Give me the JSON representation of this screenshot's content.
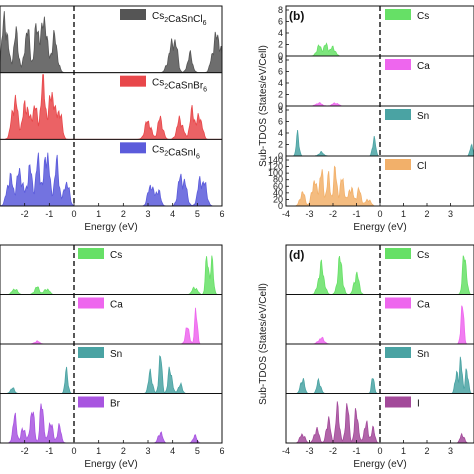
{
  "chart_data": [
    {
      "panel": "a",
      "type": "area",
      "xlabel": "Energy (eV)",
      "ylabel": "",
      "xlim": [
        -3,
        6
      ],
      "x_ticks": [
        "-2",
        "-1",
        "0",
        "1",
        "2",
        "3",
        "4",
        "5",
        "6"
      ],
      "fermi_level": 0,
      "subpanels": [
        {
          "name": "Cs2CaSnCl6",
          "legend_main": "Cs",
          "legend_parts": [
            {
              "t": "Cs"
            },
            {
              "t": "2",
              "sub": true
            },
            {
              "t": "CaSnCl"
            },
            {
              "t": "6",
              "sub": true
            }
          ],
          "color": "#555555",
          "peaks": [
            [
              -2.8,
              0.85,
              0.12
            ],
            [
              -2.35,
              0.6,
              0.1
            ],
            [
              -1.9,
              0.7,
              0.1
            ],
            [
              -1.5,
              0.75,
              0.1
            ],
            [
              -1.2,
              0.9,
              0.1
            ],
            [
              -0.8,
              0.55,
              0.12
            ],
            [
              3.9,
              0.3,
              0.12
            ],
            [
              4.1,
              0.45,
              0.1
            ],
            [
              4.7,
              0.28,
              0.1
            ],
            [
              5.7,
              0.45,
              0.12
            ],
            [
              5.9,
              0.4,
              0.1
            ]
          ]
        },
        {
          "name": "Cs2CaSnBr6",
          "legend_main": "Cs",
          "legend_parts": [
            {
              "t": "Cs"
            },
            {
              "t": "2",
              "sub": true
            },
            {
              "t": "CaSnBr"
            },
            {
              "t": "6",
              "sub": true
            }
          ],
          "color": "#e8474a",
          "peaks": [
            [
              -2.4,
              0.6,
              0.12
            ],
            [
              -1.95,
              0.55,
              0.12
            ],
            [
              -1.6,
              0.5,
              0.1
            ],
            [
              -1.25,
              0.85,
              0.1
            ],
            [
              -0.9,
              0.75,
              0.1
            ],
            [
              -0.6,
              0.45,
              0.1
            ],
            [
              3.0,
              0.28,
              0.12
            ],
            [
              3.5,
              0.32,
              0.1
            ],
            [
              4.3,
              0.3,
              0.12
            ],
            [
              4.8,
              0.42,
              0.1
            ],
            [
              5.1,
              0.35,
              0.1
            ]
          ]
        },
        {
          "name": "Cs2CaSnI6",
          "legend_main": "Cs",
          "legend_parts": [
            {
              "t": "Cs"
            },
            {
              "t": "2",
              "sub": true
            },
            {
              "t": "CaSnI"
            },
            {
              "t": "6",
              "sub": true
            }
          ],
          "color": "#5b5bdb",
          "peaks": [
            [
              -2.6,
              0.45,
              0.12
            ],
            [
              -2.2,
              0.55,
              0.12
            ],
            [
              -1.8,
              0.6,
              0.1
            ],
            [
              -1.45,
              0.7,
              0.1
            ],
            [
              -1.1,
              0.9,
              0.1
            ],
            [
              -0.7,
              0.65,
              0.1
            ],
            [
              -0.3,
              0.4,
              0.1
            ],
            [
              3.1,
              0.35,
              0.1
            ],
            [
              3.4,
              0.25,
              0.1
            ],
            [
              4.3,
              0.4,
              0.1
            ],
            [
              4.5,
              0.3,
              0.1
            ],
            [
              5.1,
              0.35,
              0.1
            ],
            [
              5.3,
              0.3,
              0.1
            ]
          ]
        }
      ]
    },
    {
      "panel": "b",
      "label": "(b)",
      "type": "area",
      "xlabel": "Energy (eV)",
      "ylabel": "Sub-TDOS (States/eV/Cell)",
      "xlim": [
        -4,
        4
      ],
      "x_ticks": [
        "-4",
        "-3",
        "-2",
        "-1",
        "0",
        "1",
        "2",
        "3"
      ],
      "fermi_level": 0,
      "subpanels": [
        {
          "name": "Cs",
          "color": "#66e066",
          "ylim": [
            0,
            8
          ],
          "yticks": [
            "0",
            "2",
            "4",
            "6",
            "8"
          ],
          "peaks": [
            [
              -2.6,
              1.6,
              0.1
            ],
            [
              -2.3,
              1.8,
              0.1
            ],
            [
              -2.0,
              1.4,
              0.1
            ]
          ]
        },
        {
          "name": "Ca",
          "color": "#ee66ee",
          "ylim": [
            0,
            8
          ],
          "yticks": [
            "0",
            "2",
            "4",
            "6",
            "8"
          ],
          "peaks": [
            [
              -2.6,
              0.5,
              0.12
            ],
            [
              -1.9,
              0.5,
              0.12
            ]
          ]
        },
        {
          "name": "Sn",
          "color": "#4aa3a3",
          "ylim": [
            0,
            8
          ],
          "yticks": [
            "0",
            "2",
            "4",
            "6",
            "8"
          ],
          "peaks": [
            [
              -3.5,
              3.5,
              0.06
            ],
            [
              -2.5,
              0.6,
              0.1
            ],
            [
              -0.25,
              3.4,
              0.06
            ],
            [
              3.9,
              2.0,
              0.06
            ]
          ]
        },
        {
          "name": "Cl",
          "color": "#f2b06a",
          "ylim": [
            0,
            140
          ],
          "yticks": [
            "0",
            "20",
            "40",
            "60",
            "80",
            "100",
            "120",
            "140"
          ],
          "peaks": [
            [
              -3.3,
              40,
              0.1
            ],
            [
              -2.8,
              75,
              0.1
            ],
            [
              -2.5,
              100,
              0.08
            ],
            [
              -2.2,
              80,
              0.08
            ],
            [
              -1.9,
              100,
              0.08
            ],
            [
              -1.6,
              85,
              0.08
            ],
            [
              -1.25,
              55,
              0.1
            ],
            [
              -0.9,
              45,
              0.1
            ],
            [
              -0.5,
              20,
              0.1
            ]
          ]
        }
      ]
    },
    {
      "panel": "c",
      "type": "area",
      "xlabel": "Energy (eV)",
      "ylabel": "",
      "xlim": [
        -3,
        6
      ],
      "x_ticks": [
        "-2",
        "-1",
        "0",
        "1",
        "2",
        "3",
        "4",
        "5",
        "6"
      ],
      "fermi_level": 0,
      "subpanels": [
        {
          "name": "Cs",
          "color": "#66e066",
          "peaks": [
            [
              -2.4,
              0.12,
              0.1
            ],
            [
              -1.5,
              0.15,
              0.1
            ],
            [
              -1.1,
              0.12,
              0.1
            ],
            [
              4.9,
              0.15,
              0.1
            ],
            [
              5.4,
              0.85,
              0.06
            ],
            [
              5.6,
              0.65,
              0.06
            ]
          ]
        },
        {
          "name": "Ca",
          "color": "#ee66ee",
          "peaks": [
            [
              -1.5,
              0.05,
              0.1
            ],
            [
              4.6,
              0.3,
              0.08
            ],
            [
              4.95,
              0.75,
              0.05
            ]
          ]
        },
        {
          "name": "Sn",
          "color": "#4aa3a3",
          "peaks": [
            [
              -2.5,
              0.12,
              0.08
            ],
            [
              -0.3,
              0.5,
              0.06
            ],
            [
              3.1,
              0.45,
              0.08
            ],
            [
              3.5,
              0.9,
              0.06
            ],
            [
              3.9,
              0.55,
              0.08
            ],
            [
              4.3,
              0.2,
              0.08
            ]
          ]
        },
        {
          "name": "Br",
          "color": "#a855e0",
          "peaks": [
            [
              -2.4,
              0.55,
              0.08
            ],
            [
              -2.05,
              0.35,
              0.08
            ],
            [
              -1.7,
              0.75,
              0.08
            ],
            [
              -1.3,
              0.9,
              0.07
            ],
            [
              -0.95,
              0.5,
              0.08
            ],
            [
              -0.6,
              0.35,
              0.08
            ],
            [
              3.5,
              0.25,
              0.08
            ],
            [
              4.9,
              0.15,
              0.08
            ]
          ]
        }
      ]
    },
    {
      "panel": "d",
      "label": "(d)",
      "type": "area",
      "xlabel": "Energy (eV)",
      "ylabel": "Sub-TDOS (States/eV/Cell)",
      "xlim": [
        -4,
        4
      ],
      "x_ticks": [
        "-4",
        "-3",
        "-2",
        "-1",
        "0",
        "1",
        "2",
        "3"
      ],
      "fermi_level": 0,
      "subpanels": [
        {
          "name": "Cs",
          "color": "#66e066",
          "peaks": [
            [
              -2.5,
              0.2,
              0.12
            ],
            [
              -1.7,
              0.25,
              0.1
            ],
            [
              -1.0,
              0.15,
              0.1
            ],
            [
              3.6,
              0.3,
              0.08
            ]
          ]
        },
        {
          "name": "Ca",
          "color": "#ee66ee",
          "peaks": [
            [
              -2.5,
              0.05,
              0.12
            ],
            [
              3.5,
              0.35,
              0.06
            ]
          ]
        },
        {
          "name": "Sn",
          "color": "#4aa3a3",
          "peaks": [
            [
              -3.3,
              0.3,
              0.08
            ],
            [
              -2.6,
              0.25,
              0.08
            ],
            [
              -0.3,
              0.3,
              0.06
            ],
            [
              3.25,
              0.45,
              0.06
            ],
            [
              3.45,
              0.8,
              0.05
            ],
            [
              3.7,
              0.5,
              0.06
            ]
          ]
        },
        {
          "name": "I",
          "color": "#a34a9a",
          "peaks": [
            [
              -3.3,
              0.2,
              0.1
            ],
            [
              -2.7,
              0.3,
              0.1
            ],
            [
              -2.2,
              0.55,
              0.08
            ],
            [
              -1.8,
              0.75,
              0.08
            ],
            [
              -1.4,
              0.9,
              0.07
            ],
            [
              -1.0,
              0.7,
              0.08
            ],
            [
              -0.6,
              0.45,
              0.08
            ],
            [
              -0.3,
              0.3,
              0.08
            ],
            [
              3.5,
              0.2,
              0.08
            ]
          ]
        }
      ]
    }
  ]
}
